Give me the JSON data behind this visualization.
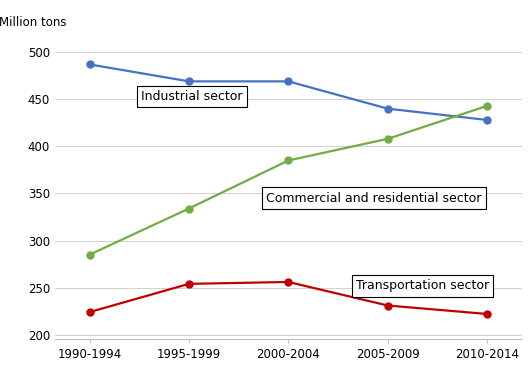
{
  "x_labels": [
    "1990-1994",
    "1995-1999",
    "2000-2004",
    "2005-2009",
    "2010-2014"
  ],
  "x_values": [
    0,
    1,
    2,
    3,
    4
  ],
  "industrial": [
    487,
    469,
    469,
    440,
    428
  ],
  "commercial": [
    285,
    334,
    385,
    408,
    443
  ],
  "transportation": [
    224,
    254,
    256,
    231,
    222
  ],
  "industrial_color": "#4472C4",
  "commercial_color": "#70AD47",
  "transportation_color": "#C00000",
  "ylim": [
    195,
    515
  ],
  "yticks": [
    200,
    250,
    300,
    350,
    400,
    450,
    500
  ],
  "ylabel": "Million tons",
  "background_color": "#ffffff",
  "marker": "o",
  "markersize": 5,
  "linewidth": 1.6,
  "label_industrial": "Industrial sector",
  "label_commercial": "Commercial and residential sector",
  "label_transportation": "Transportation sector",
  "grid_color": "#BFBFBF",
  "ann_fontsize": 9,
  "tick_fontsize": 8.5
}
